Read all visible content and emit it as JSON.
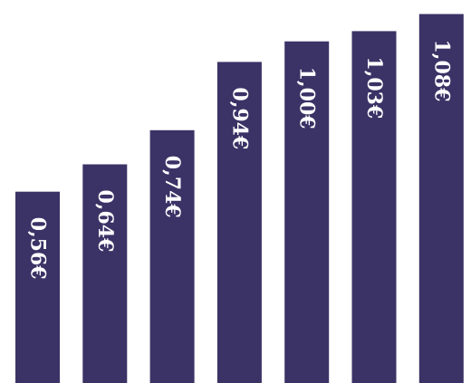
{
  "chart_data": {
    "type": "bar",
    "orientation": "vertical",
    "title": "",
    "xlabel": "",
    "ylabel": "",
    "categories": [
      "",
      "",
      "",
      "",
      "",
      "",
      ""
    ],
    "values": [
      0.56,
      0.64,
      0.74,
      0.94,
      1.0,
      1.03,
      1.08
    ],
    "data_labels": [
      "0,56€",
      "0,64€",
      "0,74€",
      "0,94€",
      "1,00€",
      "1,03€",
      "1,08€"
    ],
    "ylim": [
      0,
      1.1
    ],
    "grid": false,
    "legend": "none",
    "axes_visible": false,
    "data_label_orientation": "rotated-90-clockwise",
    "bar_color": "#3b3266",
    "label_color": "#ffffff",
    "background_color": "#ffffff"
  }
}
